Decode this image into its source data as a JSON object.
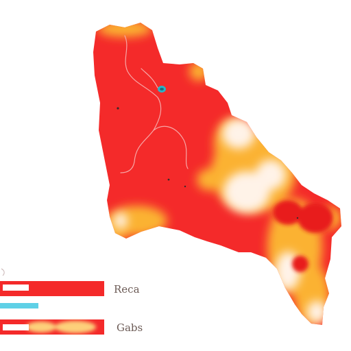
{
  "colors": {
    "background": "#ffffff",
    "high": "#f42a2a",
    "high_dark": "#e81f1f",
    "medium": "#fbb233",
    "medium_light": "#fdd07a",
    "low": "#fff3e8",
    "water": "#2ab4c9",
    "river": "#f7a6a6",
    "bar_cyan": "#5fd0e6",
    "bar_white": "#ffffff"
  },
  "legend": {
    "label_1": "Reca",
    "label_2": "Gabs",
    "fill_1": 0.85,
    "fill_2": 0.35,
    "fill_3": 0.85
  },
  "icons": {
    "water_marker": "lake-icon"
  }
}
